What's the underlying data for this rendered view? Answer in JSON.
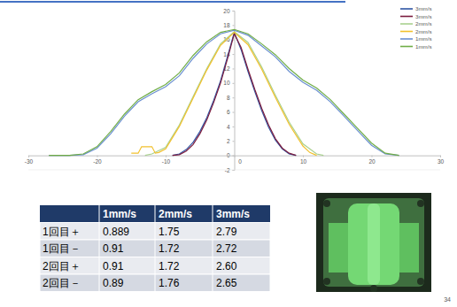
{
  "chart_data": {
    "type": "line",
    "xlim": [
      -30,
      30
    ],
    "xticks": [
      -30,
      -20,
      -10,
      0,
      10,
      20,
      30
    ],
    "ylim": [
      -2,
      20
    ],
    "yticks": [
      -2,
      0,
      2,
      4,
      6,
      8,
      10,
      12,
      14,
      16,
      18,
      20
    ],
    "grid": false,
    "legend": "upper right",
    "series": [
      {
        "name": "3mm/s",
        "color": "#2f55a4",
        "x": [
          -9,
          -8,
          -7,
          -6,
          -5,
          -4,
          -3,
          -2,
          -1,
          0,
          1,
          2,
          3,
          4,
          5,
          6,
          7,
          8,
          9
        ],
        "values": [
          0,
          0.2,
          0.8,
          1.8,
          3.3,
          5.2,
          7.6,
          10.3,
          13.6,
          17,
          14.6,
          11.6,
          8.8,
          6.2,
          3.9,
          2.1,
          0.9,
          0.2,
          0
        ]
      },
      {
        "name": "3mm/s",
        "color": "#7b1c3e",
        "x": [
          -9,
          -8,
          -7,
          -6,
          -5,
          -4,
          -3,
          -2,
          -1,
          0,
          1,
          2,
          3,
          4,
          5,
          6,
          7,
          8,
          9
        ],
        "values": [
          0,
          0.1,
          0.6,
          1.5,
          3,
          4.9,
          7.3,
          10,
          13.3,
          16.8,
          14.9,
          11.9,
          9.1,
          6.5,
          4.2,
          2.3,
          1,
          0.3,
          0
        ]
      },
      {
        "name": "2mm/s",
        "color": "#a9d18e",
        "x": [
          -13,
          -12,
          -10,
          -8,
          -6,
          -4,
          -2,
          0,
          2,
          4,
          6,
          8,
          10,
          12,
          13
        ],
        "values": [
          0,
          0.2,
          1.1,
          4.2,
          8.1,
          12,
          15.4,
          17.1,
          15.6,
          12.2,
          8.3,
          4.6,
          1.6,
          0.2,
          0
        ]
      },
      {
        "name": "2mm/s",
        "color": "#f2c12e",
        "x": [
          -15,
          -14,
          -13.5,
          -13,
          -12,
          -11.5,
          -11,
          -10,
          -8,
          -6,
          -4,
          -2,
          0,
          2,
          4,
          6,
          8,
          10,
          11,
          12
        ],
        "values": [
          0.3,
          0.3,
          1.2,
          1.2,
          1.2,
          0.3,
          0.4,
          0.9,
          4,
          7.9,
          11.8,
          15.2,
          17,
          15.3,
          11.9,
          8,
          4.3,
          1.3,
          0.4,
          0
        ]
      },
      {
        "name": "1mm/s",
        "color": "#6a8fd0",
        "x": [
          -27,
          -24,
          -22,
          -20,
          -18,
          -16,
          -14,
          -12,
          -10,
          -8,
          -6,
          -4,
          -2,
          0,
          2,
          4,
          6,
          8,
          10,
          12,
          14,
          16,
          18,
          20,
          22,
          24
        ],
        "values": [
          0,
          0,
          0.1,
          1,
          3,
          5.4,
          7.4,
          8.5,
          9.5,
          11,
          13.4,
          15.4,
          16.8,
          17.3,
          16.6,
          15.1,
          13.6,
          11.6,
          10.1,
          9,
          7.4,
          5.4,
          3.4,
          1.4,
          0.2,
          0
        ]
      },
      {
        "name": "1mm/s",
        "color": "#70ad47",
        "x": [
          -27,
          -24,
          -22,
          -20,
          -18,
          -16,
          -14,
          -12,
          -10,
          -8,
          -6,
          -4,
          -2,
          0,
          2,
          4,
          6,
          8,
          10,
          12,
          14,
          16,
          18,
          20,
          22,
          24
        ],
        "values": [
          0,
          0,
          0.2,
          1.2,
          3.3,
          5.7,
          7.7,
          8.8,
          9.8,
          11.4,
          13.8,
          15.7,
          17,
          17.4,
          16.8,
          15.4,
          13.9,
          12,
          10.4,
          9.3,
          7.7,
          5.7,
          3.7,
          1.7,
          0.3,
          0
        ]
      }
    ]
  },
  "table": {
    "header": [
      "1mm/s",
      "2mm/s",
      "3mm/s"
    ],
    "rows": [
      {
        "label": "1回目＋",
        "cells": [
          "0.889",
          "1.75",
          "2.79"
        ]
      },
      {
        "label": "1回目－",
        "cells": [
          "0.91",
          "1.72",
          "2.72"
        ]
      },
      {
        "label": "2回目＋",
        "cells": [
          "0.91",
          "1.72",
          "2.60"
        ]
      },
      {
        "label": "2回目－",
        "cells": [
          "0.89",
          "1.76",
          "2.65"
        ]
      }
    ]
  },
  "page_number": "34"
}
